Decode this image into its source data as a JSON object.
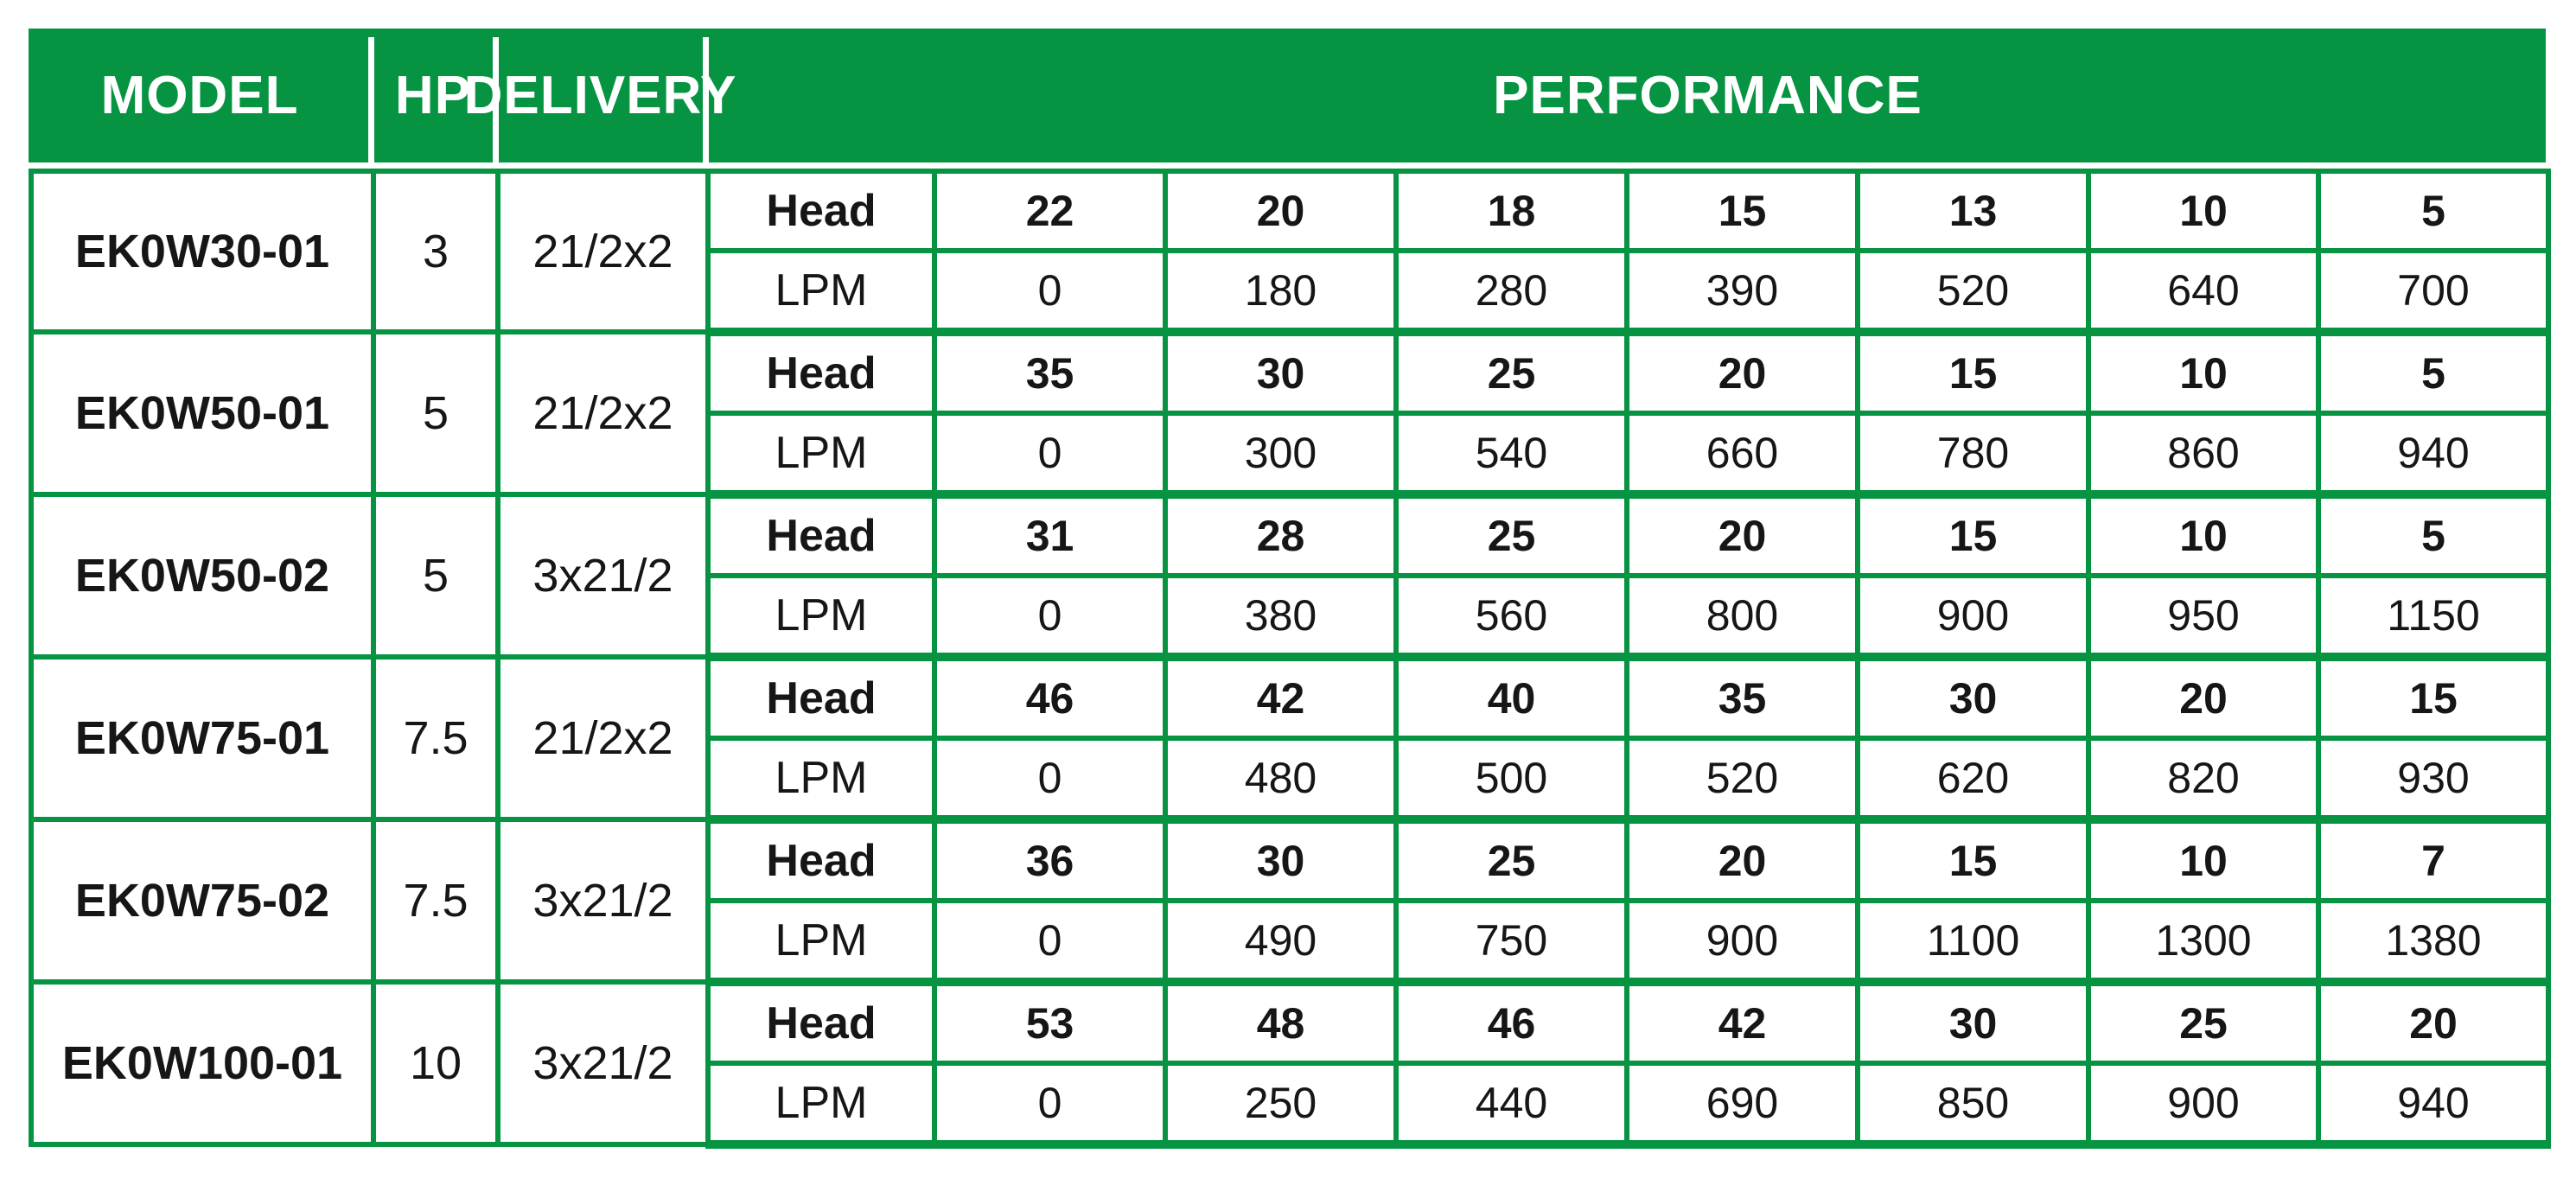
{
  "colors": {
    "green": "#079442",
    "header_text": "#ffffff",
    "body_text": "#161616"
  },
  "chart_data": {
    "type": "table",
    "columns": [
      "MODEL",
      "HP",
      "DELIVERY",
      "PERFORMANCE"
    ],
    "sub_row_labels": [
      "Head",
      "LPM"
    ],
    "rows": [
      {
        "model": "EK0W30-01",
        "hp": "3",
        "delivery": "21/2x2",
        "head": [
          "22",
          "20",
          "18",
          "15",
          "13",
          "10",
          "5"
        ],
        "lpm": [
          "0",
          "180",
          "280",
          "390",
          "520",
          "640",
          "700"
        ]
      },
      {
        "model": "EK0W50-01",
        "hp": "5",
        "delivery": "21/2x2",
        "head": [
          "35",
          "30",
          "25",
          "20",
          "15",
          "10",
          "5"
        ],
        "lpm": [
          "0",
          "300",
          "540",
          "660",
          "780",
          "860",
          "940"
        ]
      },
      {
        "model": "EK0W50-02",
        "hp": "5",
        "delivery": "3x21/2",
        "head": [
          "31",
          "28",
          "25",
          "20",
          "15",
          "10",
          "5"
        ],
        "lpm": [
          "0",
          "380",
          "560",
          "800",
          "900",
          "950",
          "1150"
        ]
      },
      {
        "model": "EK0W75-01",
        "hp": "7.5",
        "delivery": "21/2x2",
        "head": [
          "46",
          "42",
          "40",
          "35",
          "30",
          "20",
          "15"
        ],
        "lpm": [
          "0",
          "480",
          "500",
          "520",
          "620",
          "820",
          "930"
        ]
      },
      {
        "model": "EK0W75-02",
        "hp": "7.5",
        "delivery": "3x21/2",
        "head": [
          "36",
          "30",
          "25",
          "20",
          "15",
          "10",
          "7"
        ],
        "lpm": [
          "0",
          "490",
          "750",
          "900",
          "1100",
          "1300",
          "1380"
        ]
      },
      {
        "model": "EK0W100-01",
        "hp": "10",
        "delivery": "3x21/2",
        "head": [
          "53",
          "48",
          "46",
          "42",
          "30",
          "25",
          "20"
        ],
        "lpm": [
          "0",
          "250",
          "440",
          "690",
          "850",
          "900",
          "940"
        ]
      }
    ]
  }
}
